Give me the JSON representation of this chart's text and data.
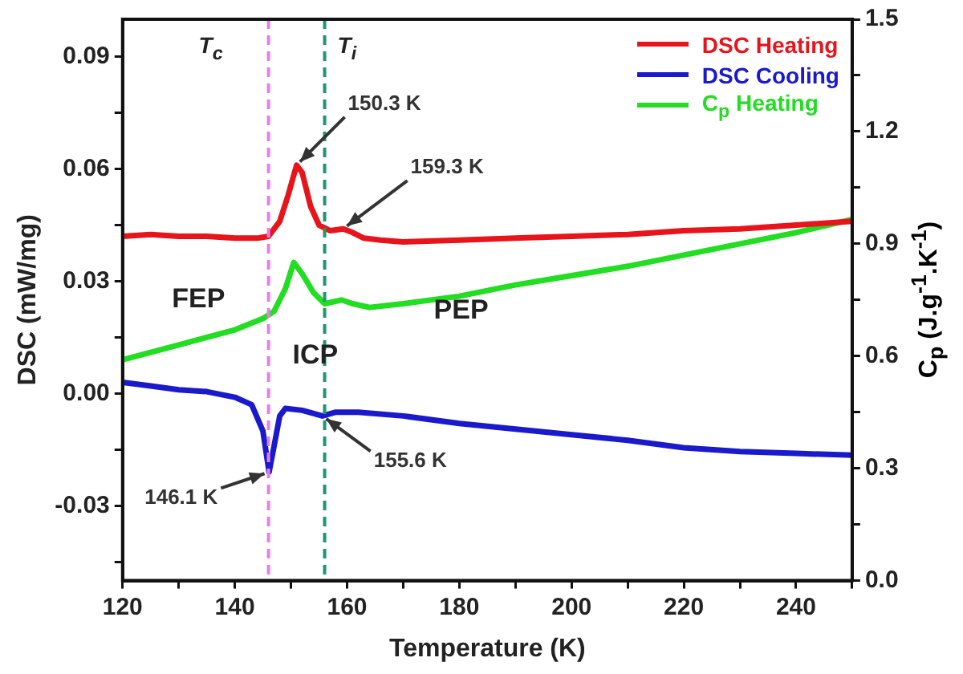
{
  "chart_data": {
    "type": "line",
    "xlabel": "Temperature (K)",
    "ylabel": "DSC (mW/mg)",
    "y2label": "C$_{p}$ (J.g$^{-1}$.K$^{-1}$)",
    "xlim": [
      120,
      250
    ],
    "xticks": [
      120,
      {
        "value": 130,
        "label": null
      },
      140,
      {
        "value": 150,
        "label": null
      },
      160,
      {
        "value": 170,
        "label": null
      },
      180,
      {
        "value": 190,
        "label": null
      },
      200,
      {
        "value": 210,
        "label": null
      },
      220,
      {
        "value": 230,
        "label": null
      },
      240,
      {
        "value": 250,
        "label": null
      }
    ],
    "ylim": [
      -0.05,
      0.1
    ],
    "yticks": [
      {
        "value": -0.045,
        "label": null
      },
      -0.03,
      {
        "value": -0.015,
        "label": null
      },
      {
        "value": 0,
        "label": "0.00"
      },
      {
        "value": 0.015,
        "label": null
      },
      0.03,
      {
        "value": 0.045,
        "label": null
      },
      0.06,
      {
        "value": 0.075,
        "label": null
      },
      0.09
    ],
    "y2lim": [
      0,
      1.5
    ],
    "y2ticks": [
      {
        "value": 0,
        "label": "0.0"
      },
      {
        "value": 0.15,
        "label": null
      },
      0.3,
      {
        "value": 0.45,
        "label": null
      },
      0.6,
      {
        "value": 0.75,
        "label": null
      },
      0.9,
      {
        "value": 1.05,
        "label": null
      },
      1.2,
      {
        "value": 1.35,
        "label": null
      },
      1.5
    ],
    "grid": false,
    "legend": "top right",
    "marker": "none",
    "line_style": "solid",
    "series": [
      {
        "name": "DSC Heating",
        "color": "#e8141c",
        "x": [
          120,
          125,
          130,
          135,
          140,
          144,
          146,
          148,
          149.5,
          151,
          152,
          153.5,
          155,
          157,
          159.3,
          161,
          163,
          166,
          170,
          180,
          190,
          200,
          210,
          220,
          230,
          240,
          250
        ],
        "values": [
          0.042,
          0.0425,
          0.042,
          0.042,
          0.0415,
          0.0415,
          0.042,
          0.046,
          0.053,
          0.061,
          0.059,
          0.05,
          0.045,
          0.0435,
          0.044,
          0.043,
          0.0415,
          0.041,
          0.0405,
          0.041,
          0.0415,
          0.042,
          0.0425,
          0.0435,
          0.044,
          0.045,
          0.046
        ]
      },
      {
        "name": "DSC Cooling",
        "color": "#1a1acc",
        "x": [
          120,
          125,
          130,
          135,
          140,
          143,
          145,
          146.1,
          147,
          148,
          149,
          152,
          155.6,
          158,
          162,
          170,
          180,
          190,
          200,
          210,
          220,
          230,
          240,
          250
        ],
        "values": [
          0.003,
          0.002,
          0.001,
          0.0005,
          -0.001,
          -0.003,
          -0.01,
          -0.021,
          -0.014,
          -0.006,
          -0.004,
          -0.0045,
          -0.006,
          -0.005,
          -0.005,
          -0.006,
          -0.008,
          -0.0095,
          -0.011,
          -0.0125,
          -0.0145,
          -0.0155,
          -0.016,
          -0.0165
        ]
      },
      {
        "name": "C$_{p}$ Heating",
        "color": "#22dd22",
        "axis": "y2",
        "x": [
          120,
          130,
          140,
          145,
          147,
          149,
          150.5,
          152,
          154,
          156,
          159,
          161,
          164,
          170,
          180,
          190,
          200,
          210,
          220,
          230,
          240,
          250
        ],
        "values": [
          0.59,
          0.63,
          0.67,
          0.7,
          0.72,
          0.78,
          0.85,
          0.82,
          0.77,
          0.74,
          0.75,
          0.74,
          0.73,
          0.74,
          0.76,
          0.79,
          0.815,
          0.84,
          0.87,
          0.9,
          0.93,
          0.965
        ]
      }
    ],
    "ref_lines": [
      {
        "axis": "x",
        "value": 146,
        "label": "T$_{c}$",
        "color": "#e87ee8",
        "line_style": "dashed"
      },
      {
        "axis": "x",
        "value": 156,
        "label": "T$_{i}$",
        "color": "#189a6a",
        "line_style": "dashed"
      }
    ],
    "annotations": [
      {
        "text": "150.3 K",
        "x": 151,
        "y": 0.061
      },
      {
        "text": "159.3 K",
        "x": 159.3,
        "y": 0.044
      },
      {
        "text": "146.1 K",
        "x": 146.1,
        "y": -0.021
      },
      {
        "text": "155.6 K",
        "x": 155.6,
        "y": -0.006
      },
      "FEP",
      "ICP",
      "PEP"
    ]
  }
}
